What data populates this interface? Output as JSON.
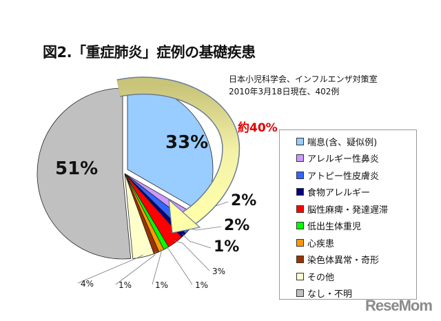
{
  "chart_data": {
    "type": "pie",
    "title": "図2.「重症肺炎」症例の基礎疾患",
    "source_line1": "日本小児科学会、インフルエンザ対策室",
    "source_line2": "2010年3月18日現在、402例",
    "annotation": "約40%",
    "legend_placement": "right",
    "slices": [
      {
        "name": "喘息(含、疑似例)",
        "value": 33,
        "label": "33%",
        "color": "#99ccff"
      },
      {
        "name": "アレルギー性鼻炎",
        "value": 2,
        "label": "2%",
        "color": "#cc99ff"
      },
      {
        "name": "アトピー性皮膚炎",
        "value": 2,
        "label": "2%",
        "color": "#3366ff"
      },
      {
        "name": "食物アレルギー",
        "value": 1,
        "label": "1%",
        "color": "#000080"
      },
      {
        "name": "脳性麻痺・発達遅滞",
        "value": 3,
        "label": "3%",
        "color": "#ff0000"
      },
      {
        "name": "低出生体重児",
        "value": 1,
        "label": "1%",
        "color": "#00ff00"
      },
      {
        "name": "心疾患",
        "value": 1,
        "label": "1%",
        "color": "#ff9900"
      },
      {
        "name": "染色体異常・奇形",
        "value": 1,
        "label": "1%",
        "color": "#993300"
      },
      {
        "name": "その他",
        "value": 4,
        "label": "4%",
        "color": "#ffffcc"
      },
      {
        "name": "なし・不明",
        "value": 51,
        "label": "51%",
        "color": "#c0c0c0"
      }
    ]
  },
  "watermark": "ReseMom"
}
